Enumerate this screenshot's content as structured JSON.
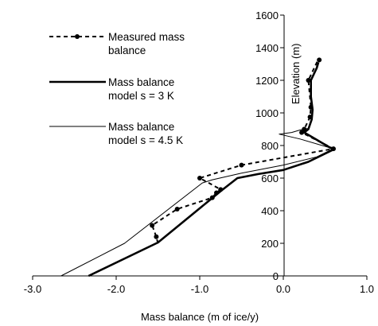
{
  "chart_data": {
    "type": "line",
    "xlabel": "Mass balance (m of ice/y)",
    "ylabel": "Elevation (m)",
    "xlim": [
      -3.0,
      1.0
    ],
    "ylim": [
      0,
      1600
    ],
    "x_ticks": [
      -3.0,
      -2.0,
      -1.0,
      0.0,
      1.0
    ],
    "x_tick_labels": [
      "-3.0",
      "-2.0",
      "-1.0",
      "0.0",
      "1.0"
    ],
    "y_ticks": [
      0,
      200,
      400,
      600,
      800,
      1000,
      1200,
      1400,
      1600
    ],
    "y_tick_labels": [
      "0",
      "200",
      "400",
      "600",
      "800",
      "1000",
      "1200",
      "1400",
      "1600"
    ],
    "grid": false,
    "legend_position": "top-left",
    "series": [
      {
        "name": "Measured mass balance",
        "style": "dashed-markers",
        "color": "#000000",
        "points": [
          [
            -1.5,
            200
          ],
          [
            -1.52,
            240
          ],
          [
            -1.57,
            310
          ],
          [
            -1.27,
            410
          ],
          [
            -0.85,
            480
          ],
          [
            -0.8,
            510
          ],
          [
            -0.75,
            530
          ],
          [
            -0.89,
            570
          ],
          [
            -1.0,
            600
          ],
          [
            -0.5,
            680
          ],
          [
            0.6,
            780
          ],
          [
            0.22,
            880
          ],
          [
            0.25,
            900
          ],
          [
            0.32,
            975
          ],
          [
            0.33,
            1035
          ],
          [
            0.3,
            1200
          ],
          [
            0.41,
            1320
          ],
          [
            0.44,
            1330
          ]
        ],
        "marked_points": [
          [
            -1.52,
            240
          ],
          [
            -1.57,
            310
          ],
          [
            -1.27,
            410
          ],
          [
            -0.85,
            480
          ],
          [
            -0.8,
            510
          ],
          [
            -0.75,
            530
          ],
          [
            -1.0,
            600
          ],
          [
            -0.5,
            680
          ],
          [
            0.6,
            780
          ],
          [
            0.22,
            880
          ],
          [
            0.25,
            900
          ],
          [
            0.32,
            975
          ],
          [
            0.33,
            1035
          ],
          [
            0.3,
            1200
          ],
          [
            0.43,
            1325
          ]
        ]
      },
      {
        "name": "Mass balance model s = 3 K",
        "style": "thick",
        "color": "#000000",
        "points": [
          [
            -2.33,
            0
          ],
          [
            -1.5,
            205
          ],
          [
            -0.75,
            520
          ],
          [
            -0.55,
            600
          ],
          [
            -0.3,
            625
          ],
          [
            0.0,
            650
          ],
          [
            0.3,
            700
          ],
          [
            0.6,
            775
          ],
          [
            0.35,
            850
          ],
          [
            0.25,
            880
          ],
          [
            0.3,
            900
          ],
          [
            0.34,
            960
          ],
          [
            0.35,
            1020
          ],
          [
            0.33,
            1100
          ],
          [
            0.33,
            1200
          ],
          [
            0.4,
            1275
          ],
          [
            0.42,
            1310
          ]
        ]
      },
      {
        "name": "Mass balance model s = 4.5 K",
        "style": "thin",
        "color": "#000000",
        "points": [
          [
            -2.66,
            0
          ],
          [
            -1.9,
            200
          ],
          [
            -0.97,
            570
          ],
          [
            -0.85,
            590
          ],
          [
            -0.5,
            630
          ],
          [
            0.0,
            680
          ],
          [
            0.4,
            730
          ],
          [
            0.6,
            780
          ],
          [
            0.2,
            840
          ],
          [
            -0.05,
            870
          ],
          [
            0.1,
            880
          ],
          [
            0.2,
            895
          ],
          [
            0.3,
            905
          ]
        ]
      }
    ]
  }
}
